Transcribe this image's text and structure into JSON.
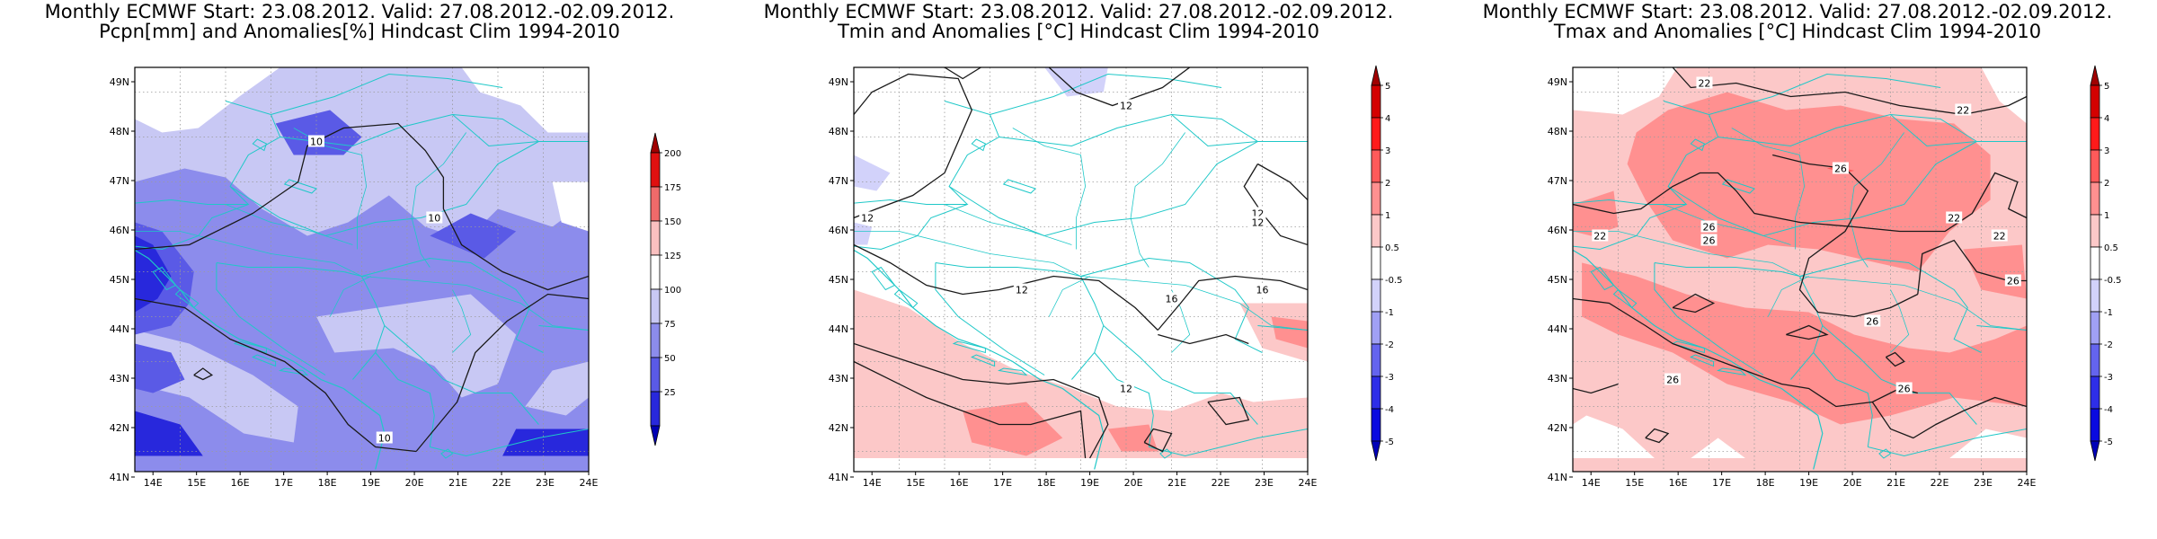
{
  "figure": {
    "panels": [
      {
        "title_line1": "Monthly ECMWF Start: 23.08.2012. Valid: 27.08.2012.-02.09.2012.",
        "title_line2": "Pcpn[mm] and Anomalies[%] Hindcast Clim 1994-2010",
        "variable": "precipitation",
        "colorbar": {
          "labels": [
            "200",
            "175",
            "150",
            "125",
            "100",
            "75",
            "50",
            "25"
          ],
          "colors": [
            "#a00000",
            "#e01010",
            "#f06a6a",
            "#fac0c0",
            "#ffffff",
            "#c8c8f4",
            "#8c8cec",
            "#5a5ae6",
            "#2828dc",
            "#0000b4"
          ]
        },
        "contour_labels": [
          "10",
          "10",
          "10"
        ]
      },
      {
        "title_line1": "Monthly ECMWF Start: 23.08.2012. Valid: 27.08.2012.-02.09.2012.",
        "title_line2": "Tmin and Anomalies [°C] Hindcast Clim 1994-2010",
        "variable": "tmin",
        "colorbar": {
          "labels": [
            "5",
            "4",
            "3",
            "2",
            "1",
            "0.5",
            "-0.5",
            "-1",
            "-2",
            "-3",
            "-4",
            "-5"
          ],
          "colors": [
            "#a00000",
            "#d40000",
            "#ff1a1a",
            "#ff5a5a",
            "#ff9090",
            "#fcc8c8",
            "#ffffff",
            "#d2d2fa",
            "#a0a0f4",
            "#6464ee",
            "#2e2ee8",
            "#0a0ae0",
            "#0000b8"
          ]
        },
        "contour_labels": [
          "12",
          "12",
          "12",
          "12",
          "12",
          "16",
          "16",
          "12"
        ]
      },
      {
        "title_line1": "Monthly ECMWF Start: 23.08.2012. Valid: 27.08.2012.-02.09.2012.",
        "title_line2": "Tmax and Anomalies [°C] Hindcast Clim 1994-2010",
        "variable": "tmax",
        "colorbar": {
          "labels": [
            "5",
            "4",
            "3",
            "2",
            "1",
            "0.5",
            "-0.5",
            "-1",
            "-2",
            "-3",
            "-4",
            "-5"
          ],
          "colors": [
            "#a00000",
            "#d40000",
            "#ff1a1a",
            "#ff5a5a",
            "#ff9090",
            "#fcc8c8",
            "#ffffff",
            "#d2d2fa",
            "#a0a0f4",
            "#6464ee",
            "#2e2ee8",
            "#0a0ae0",
            "#0000b8"
          ]
        },
        "contour_labels": [
          "22",
          "22",
          "26",
          "26",
          "26",
          "22",
          "22",
          "22",
          "26",
          "26",
          "26",
          "26"
        ]
      }
    ],
    "lon_labels": [
      "14E",
      "15E",
      "16E",
      "17E",
      "18E",
      "19E",
      "20E",
      "21E",
      "22E",
      "23E",
      "24E"
    ],
    "lat_labels": [
      "49N",
      "48N",
      "47N",
      "46N",
      "45N",
      "44N",
      "43N",
      "42N",
      "41N"
    ]
  }
}
